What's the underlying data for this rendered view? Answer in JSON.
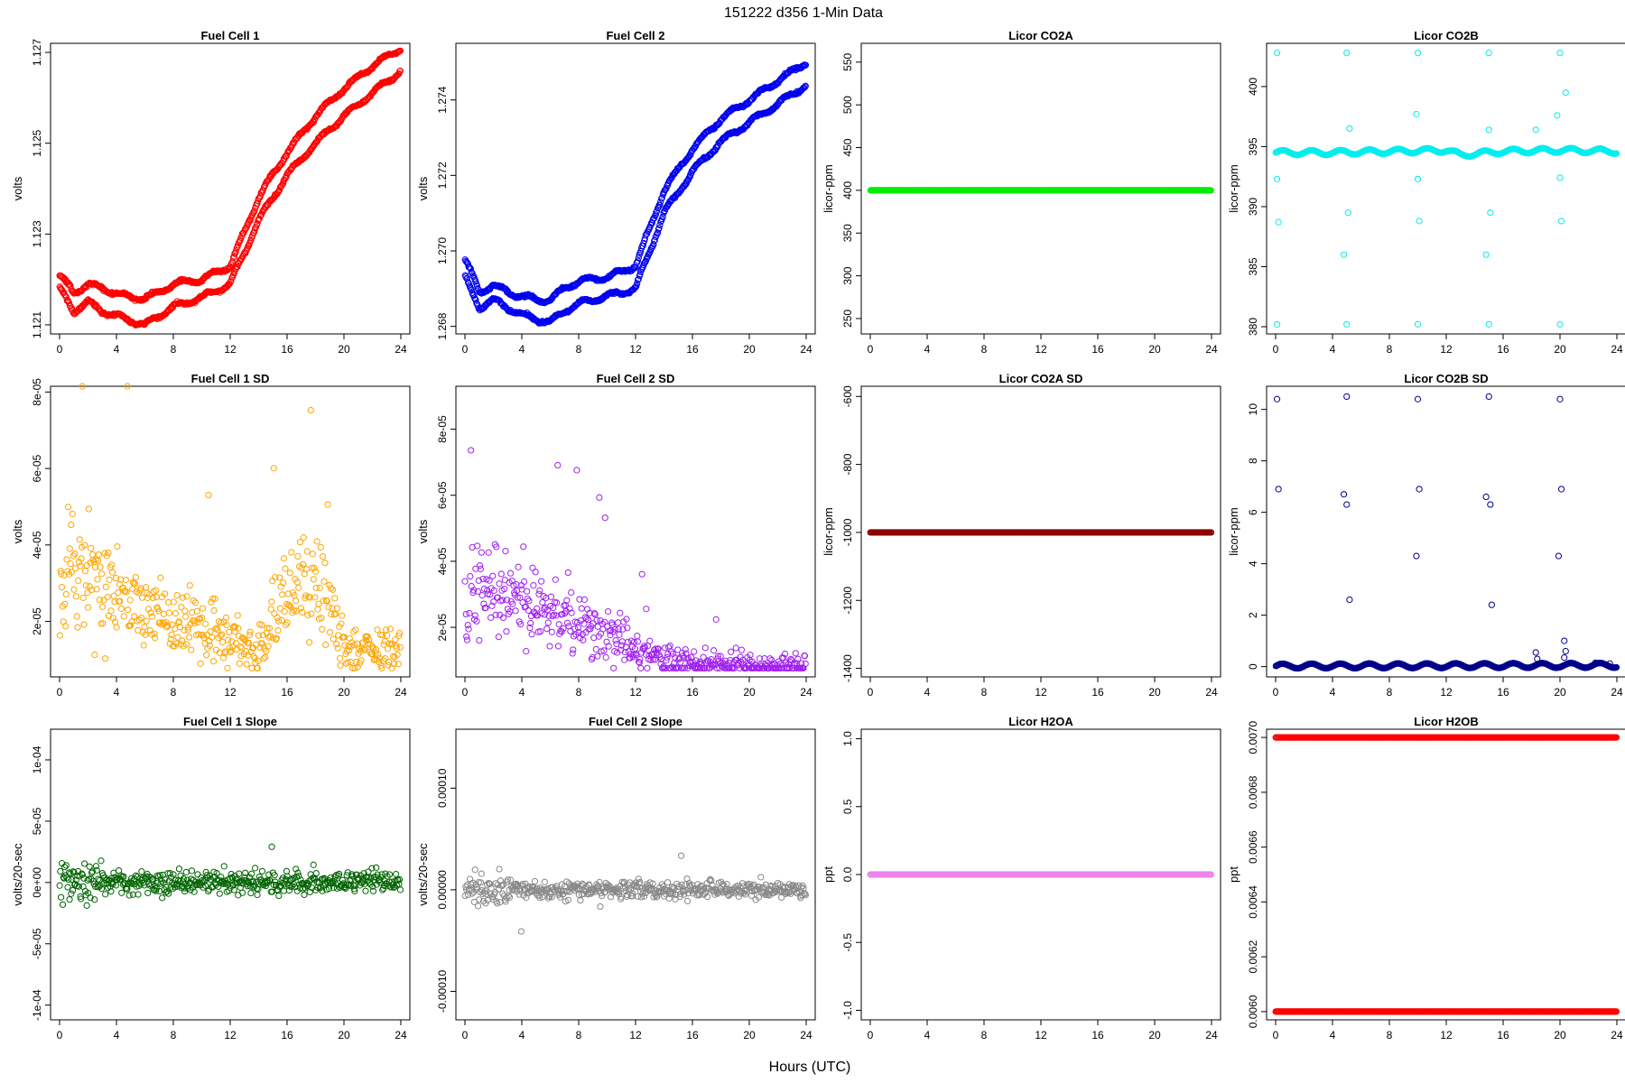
{
  "figure": {
    "title": "151222   d356   1-Min Data",
    "xlabel": "Hours (UTC)"
  },
  "chart_data": [
    {
      "type": "scatter",
      "title": "Fuel Cell 1",
      "xlabel": "",
      "ylabel": "volts",
      "xlim": [
        0,
        24
      ],
      "xticks": [
        0,
        4,
        8,
        12,
        16,
        20,
        24
      ],
      "ylim": [
        1.1208,
        1.1272
      ],
      "yticks": [
        1.121,
        1.123,
        1.125,
        1.127
      ],
      "ytick_labels": [
        "1.121",
        "1.123",
        "1.125",
        "1.127"
      ],
      "color": "#ff0000",
      "series": [
        {
          "x": [
            0,
            1,
            2,
            3,
            4,
            5,
            6,
            7,
            8,
            10,
            12,
            14,
            16,
            18,
            20,
            22,
            24
          ],
          "y": [
            1.1221,
            1.1217,
            1.1219,
            1.1218,
            1.1217,
            1.1216,
            1.1216,
            1.1217,
            1.1219,
            1.122,
            1.1223,
            1.1238,
            1.1248,
            1.1256,
            1.1262,
            1.1267,
            1.1271
          ]
        },
        {
          "x": [
            0,
            1,
            2,
            3,
            4,
            5,
            6,
            7,
            8,
            10,
            12,
            14,
            16,
            18,
            20,
            22,
            24
          ],
          "y": [
            1.1218,
            1.1213,
            1.1215,
            1.1213,
            1.1212,
            1.1211,
            1.121,
            1.1212,
            1.1214,
            1.1216,
            1.1219,
            1.1233,
            1.1243,
            1.125,
            1.1256,
            1.1261,
            1.1266
          ]
        }
      ]
    },
    {
      "type": "scatter",
      "title": "Fuel Cell 2",
      "xlabel": "",
      "ylabel": "volts",
      "xlim": [
        0,
        24
      ],
      "xticks": [
        0,
        4,
        8,
        12,
        16,
        20,
        24
      ],
      "ylim": [
        1.2678,
        1.2755
      ],
      "yticks": [
        1.268,
        1.27,
        1.272,
        1.274
      ],
      "ytick_labels": [
        "1.268",
        "1.270",
        "1.272",
        "1.274"
      ],
      "color": "#0000ee",
      "series": [
        {
          "x": [
            0,
            1,
            2,
            3,
            4,
            5,
            6,
            7,
            8,
            10,
            12,
            14,
            16,
            18,
            20,
            22,
            24
          ],
          "y": [
            1.2698,
            1.2689,
            1.2691,
            1.2689,
            1.2688,
            1.2687,
            1.2687,
            1.269,
            1.2692,
            1.2693,
            1.2696,
            1.2716,
            1.2727,
            1.2735,
            1.274,
            1.2745,
            1.275
          ]
        },
        {
          "x": [
            0,
            1,
            2,
            3,
            4,
            5,
            6,
            7,
            8,
            10,
            12,
            14,
            16,
            18,
            20,
            22,
            24
          ],
          "y": [
            1.2693,
            1.2685,
            1.2687,
            1.2685,
            1.2683,
            1.2682,
            1.2681,
            1.2684,
            1.2686,
            1.2688,
            1.269,
            1.271,
            1.2721,
            1.2729,
            1.2734,
            1.2739,
            1.2744
          ]
        }
      ]
    },
    {
      "type": "scatter",
      "title": "Licor CO2A",
      "xlabel": "",
      "ylabel": "licor-ppm",
      "xlim": [
        0,
        24
      ],
      "xticks": [
        0,
        4,
        8,
        12,
        16,
        20,
        24
      ],
      "ylim": [
        232,
        572
      ],
      "yticks": [
        250,
        300,
        350,
        400,
        450,
        500,
        550
      ],
      "ytick_labels": [
        "250",
        "300",
        "350",
        "400",
        "450",
        "500",
        "550"
      ],
      "color": "#00ee00",
      "series": [
        {
          "x": [
            0,
            24
          ],
          "y": [
            400,
            400
          ]
        }
      ]
    },
    {
      "type": "scatter",
      "title": "Licor CO2B",
      "xlabel": "",
      "ylabel": "licor-ppm",
      "xlim": [
        0,
        24
      ],
      "xticks": [
        0,
        4,
        8,
        12,
        16,
        20,
        24
      ],
      "ylim": [
        379.4,
        403.6
      ],
      "yticks": [
        380,
        385,
        390,
        395,
        400
      ],
      "ytick_labels": [
        "380",
        "385",
        "390",
        "395",
        "400"
      ],
      "color": "#00eeee",
      "series": [
        {
          "x": [
            0,
            4,
            8,
            12,
            13,
            14,
            16,
            20,
            24
          ],
          "y": [
            394.5,
            394.5,
            394.6,
            394.7,
            394.3,
            394.4,
            394.6,
            394.7,
            394.6
          ]
        }
      ],
      "outliers": [
        [
          0.1,
          402.8
        ],
        [
          0.1,
          392.3
        ],
        [
          0.2,
          388.7
        ],
        [
          0.1,
          380.2
        ],
        [
          5.0,
          402.8
        ],
        [
          4.8,
          386.0
        ],
        [
          5.1,
          389.5
        ],
        [
          5.0,
          380.2
        ],
        [
          5.2,
          396.5
        ],
        [
          10.0,
          402.8
        ],
        [
          9.9,
          397.7
        ],
        [
          10.0,
          392.3
        ],
        [
          10.1,
          388.8
        ],
        [
          10.0,
          380.2
        ],
        [
          15.0,
          402.8
        ],
        [
          14.8,
          386.0
        ],
        [
          15.1,
          389.5
        ],
        [
          15.0,
          380.2
        ],
        [
          15.0,
          396.4
        ],
        [
          20.0,
          402.8
        ],
        [
          20.1,
          388.8
        ],
        [
          20.0,
          380.2
        ],
        [
          20.4,
          399.5
        ],
        [
          19.8,
          397.6
        ],
        [
          18.3,
          396.4
        ],
        [
          20.0,
          392.4
        ]
      ]
    },
    {
      "type": "scatter",
      "title": "Fuel Cell 1 SD",
      "xlabel": "",
      "ylabel": "volts",
      "xlim": [
        0,
        24
      ],
      "xticks": [
        0,
        4,
        8,
        12,
        16,
        20,
        24
      ],
      "ylim": [
        5.5e-06,
        8.15e-05
      ],
      "yticks": [
        2e-05,
        4e-05,
        6e-05,
        8e-05
      ],
      "ytick_labels": [
        "2e-05",
        "4e-05",
        "6e-05",
        "8e-05"
      ],
      "color": "#ffa500",
      "series": [
        {
          "x": [
            0,
            1,
            2,
            4,
            6,
            8,
            10,
            12,
            13,
            14,
            15,
            16,
            17,
            18,
            19,
            20,
            22,
            24
          ],
          "y": [
            2.5e-05,
            3.3e-05,
            3.1e-05,
            2.6e-05,
            2.4e-05,
            2e-05,
            1.8e-05,
            1.6e-05,
            1.4e-05,
            1.3e-05,
            2e-05,
            2.8e-05,
            3e-05,
            3.1e-05,
            2.4e-05,
            1.3e-05,
            1.2e-05,
            1.3e-05
          ]
        }
      ]
    },
    {
      "type": "scatter",
      "title": "Fuel Cell 2 SD",
      "xlabel": "",
      "ylabel": "volts",
      "xlim": [
        0,
        24
      ],
      "xticks": [
        0,
        4,
        8,
        12,
        16,
        20,
        24
      ],
      "ylim": [
        5e-06,
        9.3e-05
      ],
      "yticks": [
        2e-05,
        4e-05,
        6e-05,
        8e-05
      ],
      "ytick_labels": [
        "2e-05",
        "4e-05",
        "6e-05",
        "8e-05"
      ],
      "color": "#a020f0",
      "series": [
        {
          "x": [
            0,
            1,
            2,
            4,
            6,
            8,
            10,
            12,
            14,
            16,
            20,
            24
          ],
          "y": [
            2.6e-05,
            3.4e-05,
            3.2e-05,
            2.9e-05,
            2.5e-05,
            2.1e-05,
            1.8e-05,
            1.3e-05,
            1e-05,
            9e-06,
            8e-06,
            8e-06
          ]
        }
      ]
    },
    {
      "type": "scatter",
      "title": "Licor CO2A SD",
      "xlabel": "",
      "ylabel": "licor-ppm",
      "xlim": [
        0,
        24
      ],
      "xticks": [
        0,
        4,
        8,
        12,
        16,
        20,
        24
      ],
      "ylim": [
        -1425,
        -570
      ],
      "yticks": [
        -1400,
        -1200,
        -1000,
        -800,
        -600
      ],
      "ytick_labels": [
        "-1400",
        "-1200",
        "-1000",
        "-800",
        "-600"
      ],
      "color": "#8b0000",
      "series": [
        {
          "x": [
            0,
            24
          ],
          "y": [
            -1000,
            -1000
          ]
        }
      ]
    },
    {
      "type": "scatter",
      "title": "Licor CO2B SD",
      "xlabel": "",
      "ylabel": "licor-ppm",
      "xlim": [
        0,
        24
      ],
      "xticks": [
        0,
        4,
        8,
        12,
        16,
        20,
        24
      ],
      "ylim": [
        -0.4,
        10.9
      ],
      "yticks": [
        0,
        2,
        4,
        6,
        8,
        10
      ],
      "ytick_labels": [
        "0",
        "2",
        "4",
        "6",
        "8",
        "10"
      ],
      "color": "#00008b",
      "series": [
        {
          "x": [
            0,
            24
          ],
          "y": [
            0.02,
            0.05
          ]
        }
      ],
      "outliers": [
        [
          0.1,
          10.4
        ],
        [
          0.2,
          6.9
        ],
        [
          5.0,
          10.5
        ],
        [
          4.8,
          6.7
        ],
        [
          5.0,
          6.3
        ],
        [
          5.2,
          2.6
        ],
        [
          10.0,
          10.4
        ],
        [
          10.1,
          6.9
        ],
        [
          9.9,
          4.3
        ],
        [
          15.0,
          10.5
        ],
        [
          14.8,
          6.6
        ],
        [
          15.1,
          6.3
        ],
        [
          15.2,
          2.4
        ],
        [
          20.0,
          10.4
        ],
        [
          20.1,
          6.9
        ],
        [
          19.9,
          4.3
        ],
        [
          20.3,
          1.0
        ],
        [
          20.4,
          0.6
        ],
        [
          20.3,
          0.35
        ],
        [
          18.3,
          0.55
        ],
        [
          18.4,
          0.3
        ],
        [
          22.5,
          0.15
        ],
        [
          23.5,
          0.12
        ]
      ]
    },
    {
      "type": "scatter",
      "title": "Fuel Cell 1 Slope",
      "xlabel": "",
      "ylabel": "volts/20-sec",
      "xlim": [
        0,
        24
      ],
      "xticks": [
        0,
        4,
        8,
        12,
        16,
        20,
        24
      ],
      "ylim": [
        -0.000112,
        0.000125
      ],
      "yticks": [
        -0.0001,
        -5e-05,
        0,
        5e-05,
        0.0001
      ],
      "ytick_labels": [
        "-1e-04",
        "-5e-05",
        "0e+00",
        "5e-05",
        "1e-04"
      ],
      "color": "#006400",
      "series": [
        {
          "x": [
            0,
            4,
            8,
            12,
            16,
            20,
            24
          ],
          "y": [
            0,
            0,
            0,
            0,
            0,
            0,
            0
          ]
        }
      ]
    },
    {
      "type": "scatter",
      "title": "Fuel Cell 2 Slope",
      "xlabel": "",
      "ylabel": "volts/20-sec",
      "xlim": [
        0,
        24
      ],
      "xticks": [
        0,
        4,
        8,
        12,
        16,
        20,
        24
      ],
      "ylim": [
        -0.000128,
        0.000158
      ],
      "yticks": [
        -0.0001,
        0,
        0.0001
      ],
      "ytick_labels": [
        "-0.00010",
        "0.00000",
        "0.00010"
      ],
      "color": "#888888",
      "series": [
        {
          "x": [
            0,
            4,
            8,
            12,
            16,
            20,
            24
          ],
          "y": [
            0,
            0,
            0,
            0,
            0,
            0,
            0
          ]
        }
      ]
    },
    {
      "type": "scatter",
      "title": "Licor H2OA",
      "xlabel": "",
      "ylabel": "ppt",
      "xlim": [
        0,
        24
      ],
      "xticks": [
        0,
        4,
        8,
        12,
        16,
        20,
        24
      ],
      "ylim": [
        -1.07,
        1.07
      ],
      "yticks": [
        -1.0,
        -0.5,
        0.0,
        0.5,
        1.0
      ],
      "ytick_labels": [
        "-1.0",
        "-0.5",
        "0.0",
        "0.5",
        "1.0"
      ],
      "color": "#ee82ee",
      "series": [
        {
          "x": [
            0,
            24
          ],
          "y": [
            0,
            0
          ]
        }
      ]
    },
    {
      "type": "scatter",
      "title": "Licor H2OB",
      "xlabel": "",
      "ylabel": "ppt",
      "xlim": [
        0,
        24
      ],
      "xticks": [
        0,
        4,
        8,
        12,
        16,
        20,
        24
      ],
      "ylim": [
        0.00597,
        0.00703
      ],
      "yticks": [
        0.006,
        0.0062,
        0.0064,
        0.0066,
        0.0068,
        0.007
      ],
      "ytick_labels": [
        "0.0060",
        "0.0062",
        "0.0064",
        "0.0066",
        "0.0068",
        "0.0070"
      ],
      "color": "#ff0000",
      "series": [
        {
          "x": [
            0,
            24
          ],
          "y": [
            0.007,
            0.007
          ]
        },
        {
          "x": [
            0,
            24
          ],
          "y": [
            0.006,
            0.006
          ]
        }
      ]
    }
  ]
}
